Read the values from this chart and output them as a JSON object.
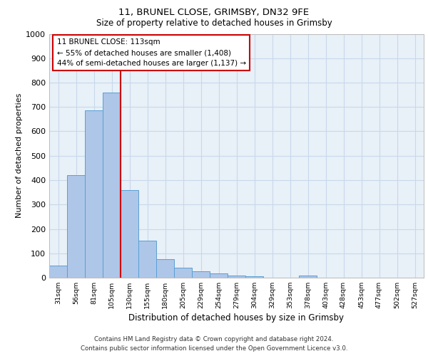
{
  "title1": "11, BRUNEL CLOSE, GRIMSBY, DN32 9FE",
  "title2": "Size of property relative to detached houses in Grimsby",
  "xlabel": "Distribution of detached houses by size in Grimsby",
  "ylabel": "Number of detached properties",
  "categories": [
    "31sqm",
    "56sqm",
    "81sqm",
    "105sqm",
    "130sqm",
    "155sqm",
    "180sqm",
    "205sqm",
    "229sqm",
    "254sqm",
    "279sqm",
    "304sqm",
    "329sqm",
    "353sqm",
    "378sqm",
    "403sqm",
    "428sqm",
    "453sqm",
    "477sqm",
    "502sqm",
    "527sqm"
  ],
  "values": [
    50,
    420,
    685,
    760,
    360,
    152,
    75,
    40,
    27,
    17,
    10,
    6,
    1,
    0,
    10,
    0,
    0,
    0,
    0,
    0,
    0
  ],
  "bar_color": "#aec6e8",
  "bar_edge_color": "#5a9fd4",
  "annotation_line1": "11 BRUNEL CLOSE: 113sqm",
  "annotation_line2": "← 55% of detached houses are smaller (1,408)",
  "annotation_line3": "44% of semi-detached houses are larger (1,137) →",
  "vline_color": "#cc0000",
  "vline_x": 3.5,
  "ylim_max": 1000,
  "yticks": [
    0,
    100,
    200,
    300,
    400,
    500,
    600,
    700,
    800,
    900,
    1000
  ],
  "grid_color": "#c8d8ea",
  "bg_color": "#e8f0f8",
  "footer1": "Contains HM Land Registry data © Crown copyright and database right 2024.",
  "footer2": "Contains public sector information licensed under the Open Government Licence v3.0.",
  "title1_fontsize": 9.5,
  "title2_fontsize": 8.5,
  "footer_fontsize": 6.2,
  "ylabel_fontsize": 8,
  "xlabel_fontsize": 8.5
}
